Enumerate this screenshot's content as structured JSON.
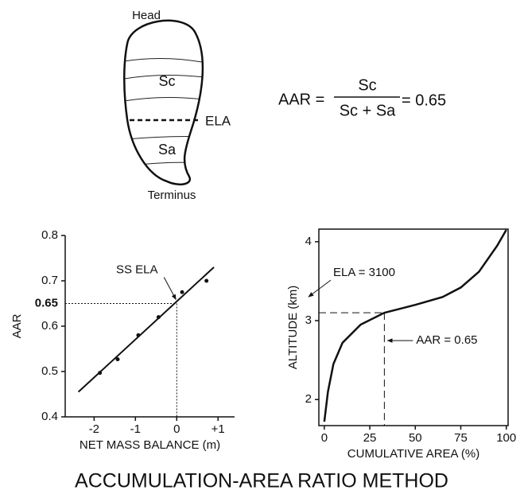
{
  "diagram": {
    "labels": {
      "head": "Head",
      "sc": "Sc",
      "ela": "ELA",
      "sa": "Sa",
      "terminus": "Terminus"
    }
  },
  "equation": {
    "lhs": "AAR =",
    "numerator": "Sc",
    "denominator": "Sc + Sa",
    "rhs": "= 0.65"
  },
  "chart_data": [
    {
      "type": "scatter",
      "xlabel": "NET MASS BALANCE (m)",
      "ylabel": "AAR",
      "x": [
        -1.86,
        -1.43,
        -0.93,
        -0.44,
        0.13,
        0.72
      ],
      "values": [
        0.497,
        0.527,
        0.58,
        0.62,
        0.675,
        0.7
      ],
      "fit_line": {
        "x": [
          -2.38,
          0.9
        ],
        "values": [
          0.455,
          0.73
        ]
      },
      "ela": {
        "x": 0,
        "y": 0.65
      },
      "annotation": "SS ELA",
      "xlim": [
        -2.7,
        1.4
      ],
      "ylim": [
        0.4,
        0.8
      ],
      "xticks": [
        -2,
        -1,
        0,
        {
          "value": 1,
          "label": "+1"
        }
      ],
      "yticks": [
        0.4,
        0.5,
        0.6,
        0.7,
        0.8
      ]
    },
    {
      "type": "line",
      "xlabel": "CUMULATIVE  AREA (%)",
      "ylabel": "ALTITUDE (km)",
      "x": [
        0,
        2,
        5,
        10,
        20,
        33,
        50,
        65,
        75,
        85,
        95,
        100
      ],
      "values": [
        1.72,
        2.1,
        2.45,
        2.72,
        2.95,
        3.1,
        3.2,
        3.3,
        3.42,
        3.62,
        3.95,
        4.15
      ],
      "ela": {
        "x": 33,
        "y": 3.1
      },
      "annotations": [
        "ELA = 3100",
        "AAR = 0.65"
      ],
      "xlim": [
        -3,
        101
      ],
      "ylim": [
        1.67,
        4.16
      ],
      "xticks": [
        0,
        25,
        50,
        75,
        100
      ],
      "yticks": [
        2,
        3,
        4
      ]
    }
  ],
  "title": "ACCUMULATION-AREA RATIO METHOD"
}
